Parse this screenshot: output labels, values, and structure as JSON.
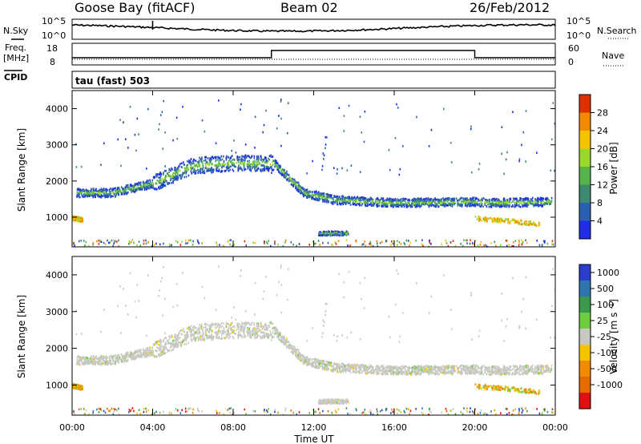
{
  "header": {
    "station": "Goose Bay (fitACF)",
    "beam": "Beam 02",
    "date": "26/Feb/2012"
  },
  "noise_panel": {
    "left_label": "N.Sky",
    "right_label": "N.Search",
    "left_ticks": [
      "10^5",
      "10^0"
    ],
    "right_ticks": [
      "10^5",
      "10^0"
    ]
  },
  "freq_panel": {
    "left_label_1": "Freq.",
    "left_label_2": "[MHz]",
    "right_label": "Nave",
    "left_ticks": [
      "18",
      "8"
    ],
    "right_ticks": [
      "60",
      "0"
    ]
  },
  "cpid": {
    "label": "CPID",
    "value": "tau (fast) 503"
  },
  "x_axis": {
    "ticks": [
      "00:00",
      "04:00",
      "08:00",
      "12:00",
      "16:00",
      "20:00",
      "00:00"
    ],
    "label": "Time UT"
  },
  "power_panel": {
    "ylabel": "Slant Range [km]",
    "yticks": [
      "1000",
      "2000",
      "3000",
      "4000"
    ],
    "colorbar_label": "Power [dB]",
    "colorbar_ticks": [
      "4",
      "8",
      "12",
      "16",
      "20",
      "24",
      "28"
    ],
    "colors": [
      "#1f2ee6",
      "#2b5fb2",
      "#3c8a70",
      "#55b54b",
      "#9ad92b",
      "#f5c400",
      "#f28a00",
      "#e03000"
    ]
  },
  "velocity_panel": {
    "ylabel": "Slant Range [km]",
    "yticks": [
      "1000",
      "2000",
      "3000",
      "4000"
    ],
    "colorbar_label": "Velocity [m s^-1]",
    "colorbar_ticks": [
      "1000",
      "500",
      "100",
      "25",
      "-25",
      "-100",
      "-500",
      "-1000"
    ],
    "colors": [
      "#2a3dcc",
      "#2f76b0",
      "#3a9a4a",
      "#6ccd3e",
      "#c8c8c2",
      "#f5c400",
      "#f28a00",
      "#e56a00",
      "#e01010"
    ]
  },
  "chart_data": {
    "type": "heatmap",
    "x_unit": "hours UT",
    "x_range": [
      0,
      24
    ],
    "y_range_km": [
      180,
      4500
    ],
    "scatter_bands": [
      {
        "name": "main",
        "points": [
          [
            0.2,
            1700
          ],
          [
            2,
            1700
          ],
          [
            4,
            1960
          ],
          [
            6,
            2450
          ],
          [
            8,
            2520
          ],
          [
            10,
            2520
          ],
          [
            11.5,
            1700
          ],
          [
            13,
            1500
          ],
          [
            16,
            1420
          ],
          [
            20,
            1450
          ],
          [
            21,
            1420
          ],
          [
            23.8,
            1450
          ]
        ]
      },
      {
        "name": "near-early",
        "points": [
          [
            0.0,
            1000
          ],
          [
            0.5,
            950
          ]
        ]
      },
      {
        "name": "patch-12h",
        "points": [
          [
            12.2,
            580
          ],
          [
            13.7,
            580
          ]
        ]
      },
      {
        "name": "late-near",
        "points": [
          [
            20,
            1000
          ],
          [
            22,
            900
          ],
          [
            23.2,
            820
          ]
        ]
      }
    ],
    "noise_peak_hour": 4.0,
    "freq_step_hours": [
      9.9,
      20.0
    ]
  }
}
